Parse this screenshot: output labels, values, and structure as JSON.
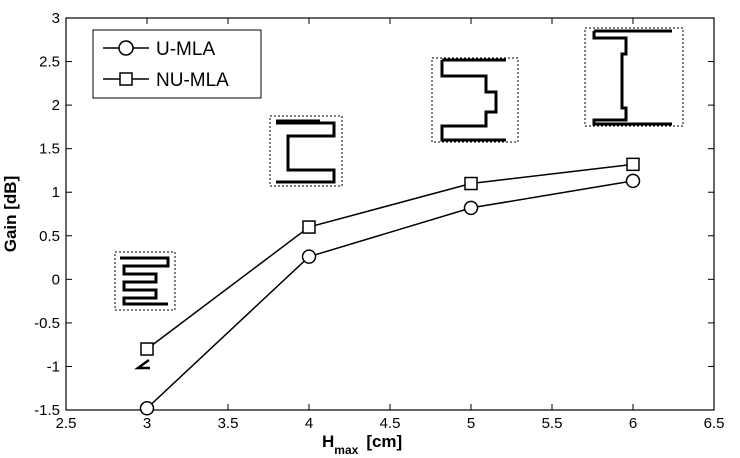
{
  "chart_data": {
    "type": "line",
    "xlabel_main": "H",
    "xlabel_sub": "max",
    "xlabel_unit": "[cm]",
    "ylabel": "Gain  [dB]",
    "xlim": [
      2.5,
      6.5
    ],
    "ylim": [
      -1.5,
      3
    ],
    "xticks": [
      "2.5",
      "3",
      "3.5",
      "4",
      "4.5",
      "5",
      "5.5",
      "6",
      "6.5"
    ],
    "yticks": [
      "-1.5",
      "-1",
      "-0.5",
      "0",
      "0.5",
      "1",
      "1.5",
      "2",
      "2.5",
      "3"
    ],
    "x": [
      3,
      4,
      5,
      6
    ],
    "series": [
      {
        "name": "U-MLA",
        "marker": "circle",
        "values": [
          -1.48,
          0.26,
          0.82,
          1.13
        ]
      },
      {
        "name": "NU-MLA",
        "marker": "square",
        "values": [
          -0.8,
          0.6,
          1.1,
          1.32
        ]
      }
    ],
    "legend_position": "top-left",
    "grid": false
  }
}
